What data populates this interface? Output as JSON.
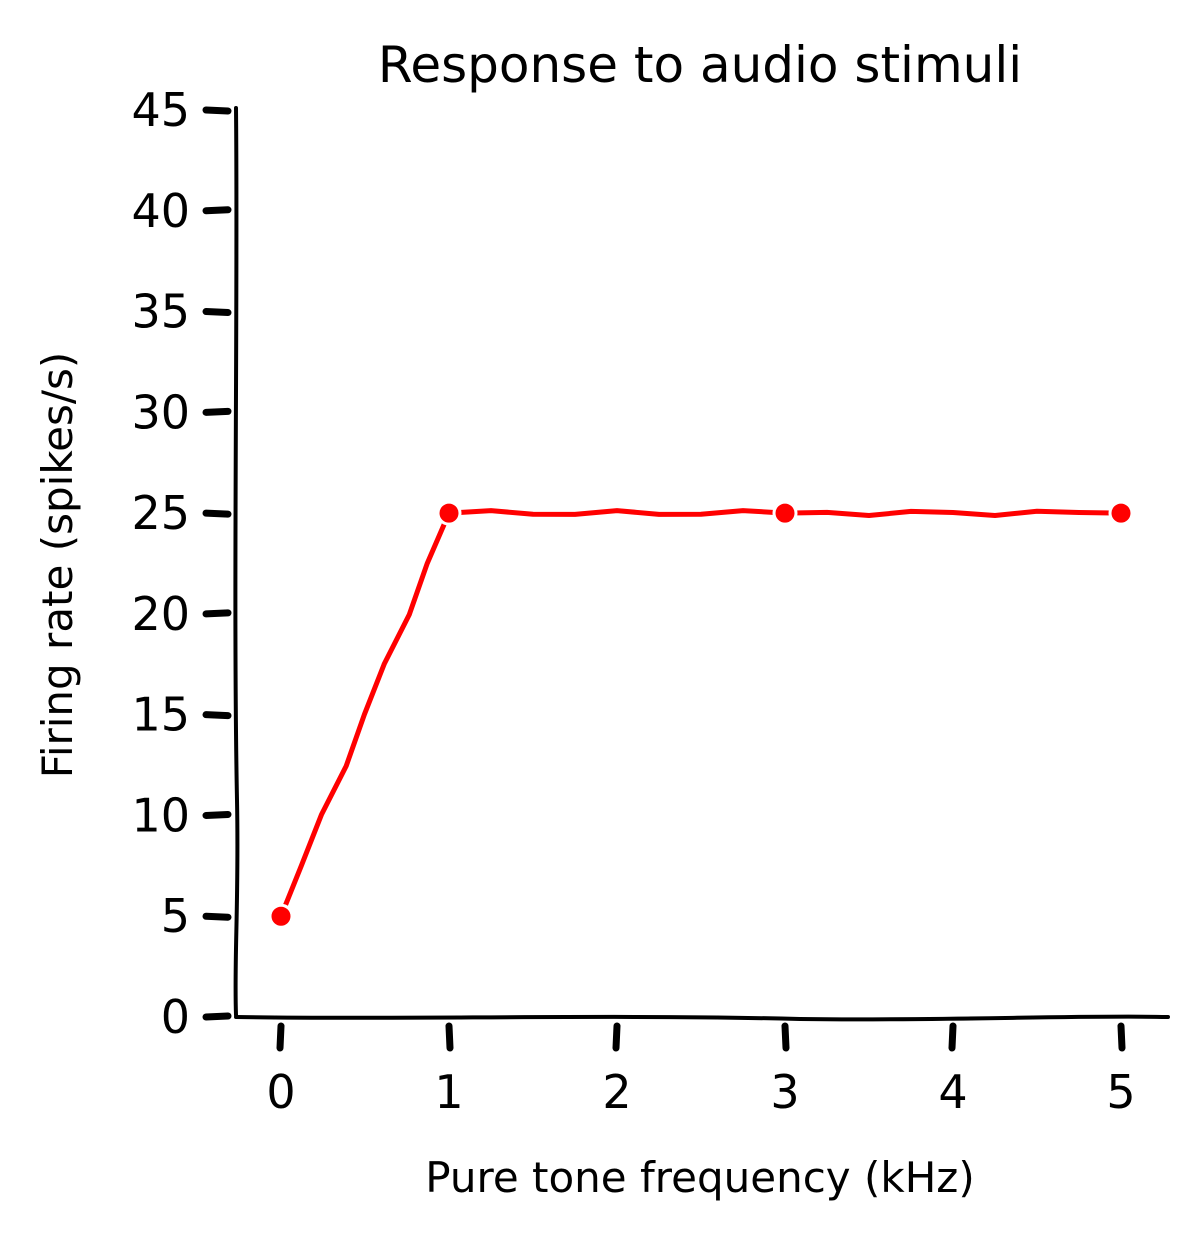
{
  "chart_data": {
    "type": "line",
    "title": "Response to audio stimuli",
    "xlabel": "Pure tone frequency (kHz)",
    "ylabel": "Firing rate (spikes/s)",
    "x": [
      0,
      1,
      3,
      5
    ],
    "series": [
      {
        "values": [
          5,
          25,
          25,
          25
        ],
        "color": "#ff0000"
      }
    ],
    "xlim": [
      0,
      5
    ],
    "ylim": [
      0,
      45
    ],
    "xticks": [
      "0",
      "1",
      "2",
      "3",
      "4",
      "5"
    ],
    "yticks": [
      "0",
      "5",
      "10",
      "15",
      "20",
      "25",
      "30",
      "35",
      "40",
      "45"
    ],
    "grid": false,
    "legend": "none",
    "style": "hand-drawn"
  }
}
